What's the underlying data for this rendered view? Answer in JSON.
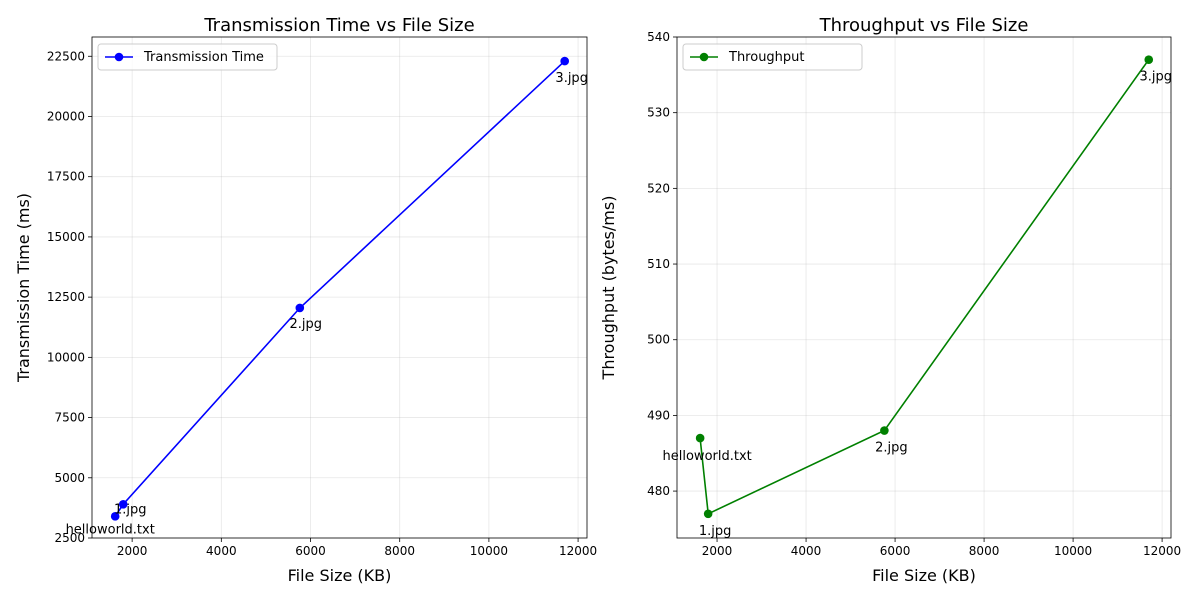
{
  "chart_data": [
    {
      "type": "line",
      "title": "Transmission Time vs File Size",
      "xlabel": "File Size (KB)",
      "ylabel": "Transmission Time (ms)",
      "xlim": [
        1100,
        12200
      ],
      "ylim": [
        2500,
        23300
      ],
      "xticks": [
        2000,
        4000,
        6000,
        8000,
        10000,
        12000
      ],
      "yticks": [
        2500,
        5000,
        7500,
        10000,
        12500,
        15000,
        17500,
        20000,
        22500
      ],
      "grid": true,
      "legend_position": "upper-left",
      "series": [
        {
          "name": "Transmission Time",
          "color": "#0000ff",
          "marker": "circle",
          "points": [
            {
              "x": 1620,
              "y": 3400,
              "label": "helloworld.txt"
            },
            {
              "x": 1800,
              "y": 3900,
              "label": "1.jpg"
            },
            {
              "x": 5760,
              "y": 12050,
              "label": "2.jpg"
            },
            {
              "x": 11700,
              "y": 22300,
              "label": "3.jpg"
            }
          ]
        }
      ]
    },
    {
      "type": "line",
      "title": "Throughput vs File Size",
      "xlabel": "File Size (KB)",
      "ylabel": "Throughput (bytes/ms)",
      "xlim": [
        1100,
        12200
      ],
      "ylim": [
        473.8,
        540
      ],
      "xticks": [
        2000,
        4000,
        6000,
        8000,
        10000,
        12000
      ],
      "yticks": [
        480,
        490,
        500,
        510,
        520,
        530,
        540
      ],
      "grid": true,
      "legend_position": "upper-left",
      "series": [
        {
          "name": "Throughput",
          "color": "#008000",
          "marker": "circle",
          "points": [
            {
              "x": 1620,
              "y": 487,
              "label": "helloworld.txt"
            },
            {
              "x": 1800,
              "y": 477,
              "label": "1.jpg"
            },
            {
              "x": 5760,
              "y": 488,
              "label": "2.jpg"
            },
            {
              "x": 11700,
              "y": 537,
              "label": "3.jpg"
            }
          ]
        }
      ]
    }
  ]
}
